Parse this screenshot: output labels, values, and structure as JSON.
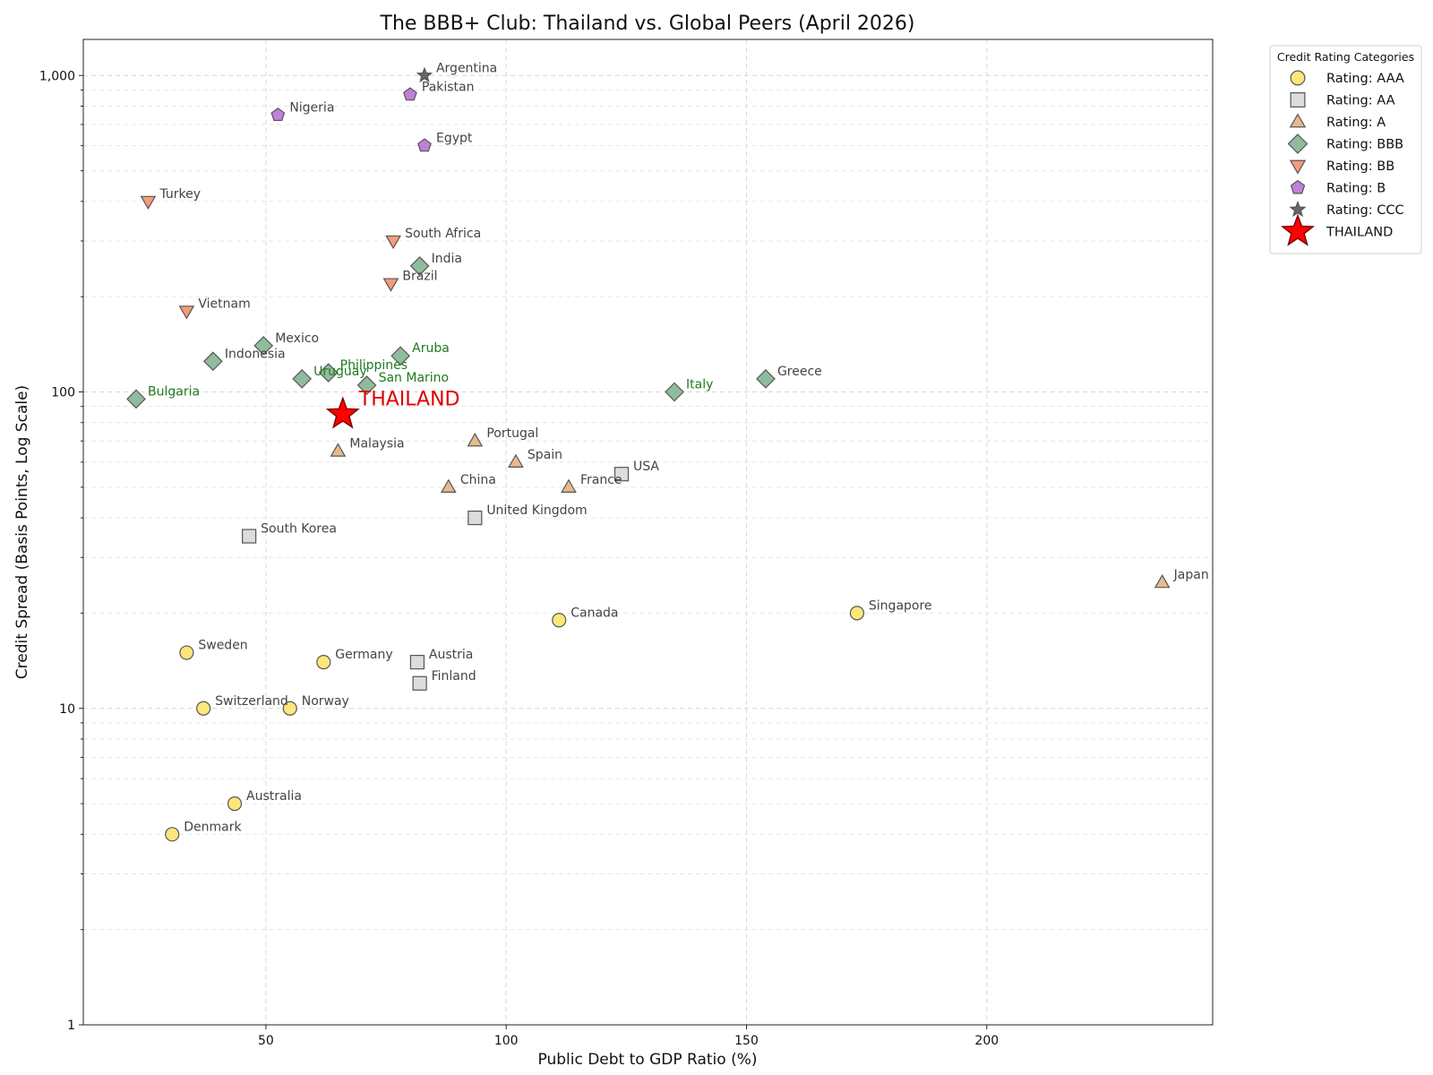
{
  "chart_data": {
    "type": "scatter",
    "title": "The BBB+ Club: Thailand vs. Global Peers (April 2026)",
    "xlabel": "Public Debt to GDP Ratio (%)",
    "ylabel": "Credit Spread (Basis Points, Log Scale)",
    "xlim": [
      12,
      247
    ],
    "ylim": [
      1,
      1300
    ],
    "yscale": "log",
    "grid": true,
    "x_ticks": [
      50,
      100,
      150,
      200
    ],
    "x_tick_labels": [
      "50",
      "100",
      "150",
      "200"
    ],
    "y_ticks": [
      1,
      10,
      100,
      1000
    ],
    "y_tick_labels": [
      "1",
      "10",
      "100",
      "1,000"
    ],
    "legend": {
      "title": "Credit Rating Categories",
      "placement": "outside upper right"
    },
    "series": [
      {
        "name": "Rating: AAA",
        "marker": "circle",
        "color": "#fde67a",
        "points": [
          {
            "label": "Sweden",
            "x": 33.5,
            "y": 15
          },
          {
            "label": "Switzerland",
            "x": 37,
            "y": 10
          },
          {
            "label": "Norway",
            "x": 55,
            "y": 10
          },
          {
            "label": "Germany",
            "x": 62,
            "y": 14
          },
          {
            "label": "Australia",
            "x": 43.5,
            "y": 5
          },
          {
            "label": "Denmark",
            "x": 30.5,
            "y": 4
          },
          {
            "label": "Canada",
            "x": 111,
            "y": 19
          },
          {
            "label": "Singapore",
            "x": 173,
            "y": 20
          }
        ]
      },
      {
        "name": "Rating: AA",
        "marker": "square",
        "color": "#dcdcdc",
        "points": [
          {
            "label": "South Korea",
            "x": 46.5,
            "y": 35
          },
          {
            "label": "Austria",
            "x": 81.5,
            "y": 14
          },
          {
            "label": "Finland",
            "x": 82,
            "y": 12
          },
          {
            "label": "United Kingdom",
            "x": 93.5,
            "y": 40
          },
          {
            "label": "USA",
            "x": 124,
            "y": 55
          }
        ]
      },
      {
        "name": "Rating: A",
        "marker": "triangle-up",
        "color": "#e8b98e",
        "points": [
          {
            "label": "Malaysia",
            "x": 65,
            "y": 65
          },
          {
            "label": "Portugal",
            "x": 93.5,
            "y": 70
          },
          {
            "label": "Spain",
            "x": 102,
            "y": 60
          },
          {
            "label": "China",
            "x": 88,
            "y": 50
          },
          {
            "label": "France",
            "x": 113,
            "y": 50
          },
          {
            "label": "Japan",
            "x": 236.5,
            "y": 25
          }
        ]
      },
      {
        "name": "Rating: BBB",
        "marker": "diamond",
        "color": "#8fbc9c",
        "points": [
          {
            "label": "Bulgaria",
            "x": 23,
            "y": 95,
            "highlight": true
          },
          {
            "label": "Indonesia",
            "x": 39,
            "y": 125,
            "highlight": false
          },
          {
            "label": "Mexico",
            "x": 49.5,
            "y": 140,
            "highlight": false
          },
          {
            "label": "Uruguay",
            "x": 57.5,
            "y": 110,
            "highlight": true
          },
          {
            "label": "Philippines",
            "x": 63,
            "y": 115,
            "highlight": true
          },
          {
            "label": "San Marino",
            "x": 71,
            "y": 105,
            "highlight": true
          },
          {
            "label": "Aruba",
            "x": 78,
            "y": 130,
            "highlight": true
          },
          {
            "label": "India",
            "x": 82,
            "y": 250,
            "highlight": false
          },
          {
            "label": "Italy",
            "x": 135,
            "y": 100,
            "highlight": true
          },
          {
            "label": "Greece",
            "x": 154,
            "y": 110,
            "highlight": false
          }
        ]
      },
      {
        "name": "Rating: BB",
        "marker": "triangle-down",
        "color": "#f79b7a",
        "points": [
          {
            "label": "Turkey",
            "x": 25.5,
            "y": 400
          },
          {
            "label": "Vietnam",
            "x": 33.5,
            "y": 180
          },
          {
            "label": "South Africa",
            "x": 76.5,
            "y": 300
          },
          {
            "label": "Brazil",
            "x": 76,
            "y": 220
          }
        ]
      },
      {
        "name": "Rating: B",
        "marker": "pentagon",
        "color": "#c07fdc",
        "points": [
          {
            "label": "Nigeria",
            "x": 52.5,
            "y": 750
          },
          {
            "label": "Pakistan",
            "x": 80,
            "y": 870
          },
          {
            "label": "Egypt",
            "x": 83,
            "y": 600
          }
        ]
      },
      {
        "name": "Rating: CCC",
        "marker": "star-small",
        "color": "#666666",
        "points": [
          {
            "label": "Argentina",
            "x": 83,
            "y": 1000
          }
        ]
      },
      {
        "name": "THAILAND",
        "marker": "star-large",
        "color": "#ff0000",
        "points": [
          {
            "label": "THAILAND",
            "x": 66,
            "y": 85
          }
        ]
      }
    ]
  }
}
